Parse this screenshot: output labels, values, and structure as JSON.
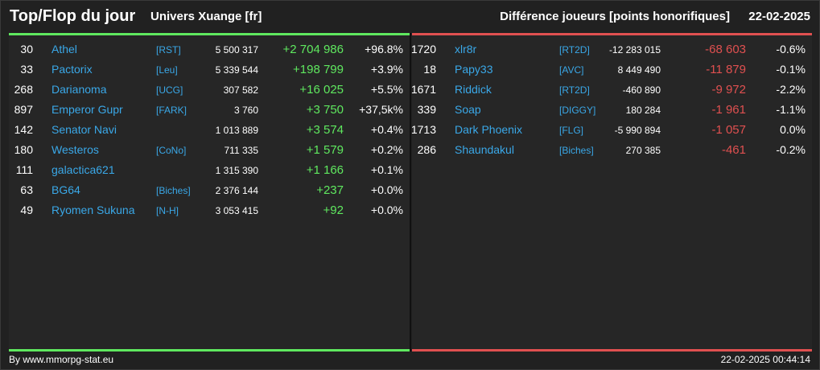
{
  "header": {
    "title": "Top/Flop du jour",
    "universe": "Univers Xuange [fr]",
    "subtitle": "Différence joueurs [points honorifiques]",
    "date": "22-02-2025"
  },
  "colors": {
    "positive": "#5fe85f",
    "negative": "#e05050",
    "link": "#3aa8e8"
  },
  "top": [
    {
      "rank": "30",
      "name": "Athel",
      "ally": "[RST]",
      "points": "5 500 317",
      "diff": "+2 704 986",
      "pct": "+96.8%"
    },
    {
      "rank": "33",
      "name": "Pactorix",
      "ally": "[Leu]",
      "points": "5 339 544",
      "diff": "+198 799",
      "pct": "+3.9%"
    },
    {
      "rank": "268",
      "name": "Darianoma",
      "ally": "[UCG]",
      "points": "307 582",
      "diff": "+16 025",
      "pct": "+5.5%"
    },
    {
      "rank": "897",
      "name": "Emperor Gupr",
      "ally": "[FARK]",
      "points": "3 760",
      "diff": "+3 750",
      "pct": "+37,5k%"
    },
    {
      "rank": "142",
      "name": "Senator Navi",
      "ally": "",
      "points": "1 013 889",
      "diff": "+3 574",
      "pct": "+0.4%"
    },
    {
      "rank": "180",
      "name": "Westeros",
      "ally": "[CoNo]",
      "points": "711 335",
      "diff": "+1 579",
      "pct": "+0.2%"
    },
    {
      "rank": "111",
      "name": "galactica621",
      "ally": "",
      "points": "1 315 390",
      "diff": "+1 166",
      "pct": "+0.1%"
    },
    {
      "rank": "63",
      "name": "BG64",
      "ally": "[Biches]",
      "points": "2 376 144",
      "diff": "+237",
      "pct": "+0.0%"
    },
    {
      "rank": "49",
      "name": "Ryomen Sukuna",
      "ally": "[N-H]",
      "points": "3 053 415",
      "diff": "+92",
      "pct": "+0.0%"
    }
  ],
  "flop": [
    {
      "rank": "1720",
      "name": "xlr8r",
      "ally": "[RT2D]",
      "points": "-12 283 015",
      "diff": "-68 603",
      "pct": "-0.6%"
    },
    {
      "rank": "18",
      "name": "Papy33",
      "ally": "[AVC]",
      "points": "8 449 490",
      "diff": "-11 879",
      "pct": "-0.1%"
    },
    {
      "rank": "1671",
      "name": "Riddick",
      "ally": "[RT2D]",
      "points": "-460 890",
      "diff": "-9 972",
      "pct": "-2.2%"
    },
    {
      "rank": "339",
      "name": "Soap",
      "ally": "[DIGGY]",
      "points": "180 284",
      "diff": "-1 961",
      "pct": "-1.1%"
    },
    {
      "rank": "1713",
      "name": "Dark Phoenix",
      "ally": "[FLG]",
      "points": "-5 990 894",
      "diff": "-1 057",
      "pct": "0.0%"
    },
    {
      "rank": "286",
      "name": "Shaundakul",
      "ally": "[Biches]",
      "points": "270 385",
      "diff": "-461",
      "pct": "-0.2%"
    }
  ],
  "footer": {
    "credit": "By www.mmorpg-stat.eu",
    "timestamp": "22-02-2025 00:44:14"
  }
}
